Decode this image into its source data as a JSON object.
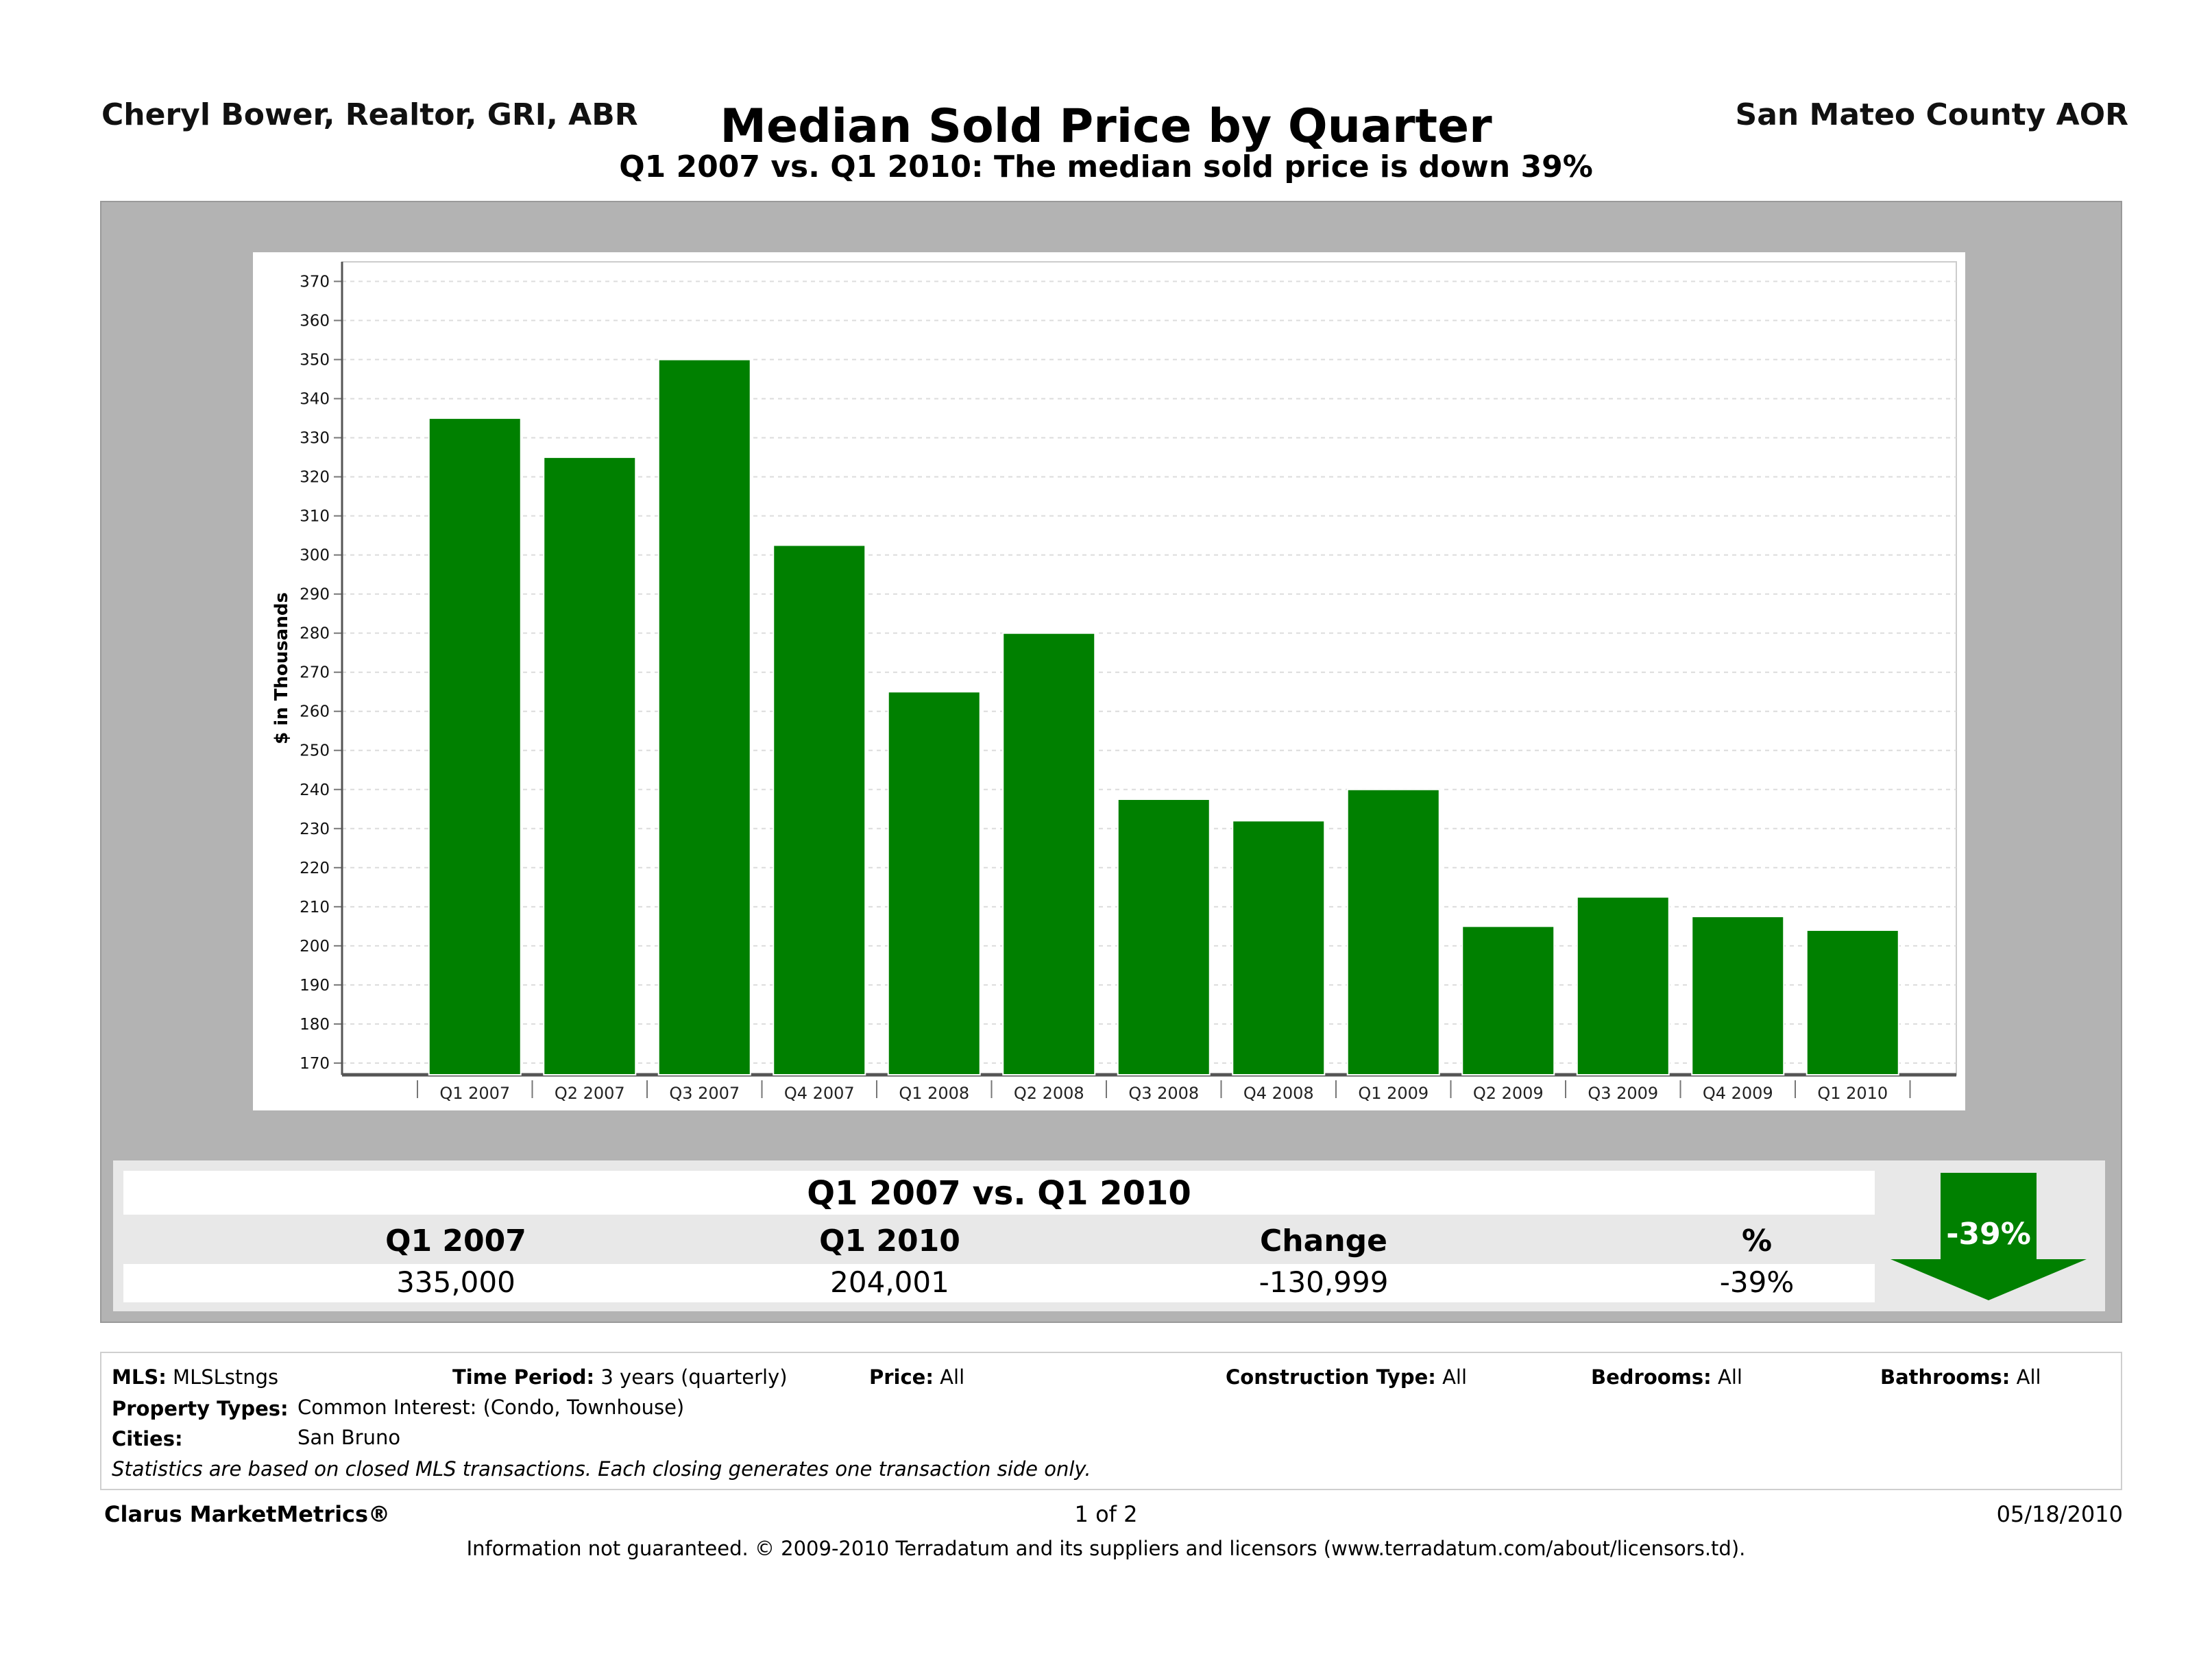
{
  "header": {
    "agent": "Cheryl Bower, Realtor, GRI, ABR",
    "association": "San Mateo County AOR",
    "title": "Median Sold Price by Quarter",
    "subtitle": "Q1 2007 vs. Q1 2010:  The median sold price is down 39%"
  },
  "chart_data": {
    "type": "bar",
    "title": "Median Sold Price by Quarter",
    "xlabel": "",
    "ylabel": "$ in Thousands",
    "categories": [
      "Q1 2007",
      "Q2 2007",
      "Q3 2007",
      "Q4 2007",
      "Q1 2008",
      "Q2 2008",
      "Q3 2008",
      "Q4 2008",
      "Q1 2009",
      "Q2 2009",
      "Q3 2009",
      "Q4 2009",
      "Q1 2010"
    ],
    "values": [
      335,
      325,
      350,
      302.5,
      265,
      280,
      237.5,
      232,
      240,
      205,
      212.5,
      207.5,
      204
    ],
    "ylim": [
      167,
      375
    ],
    "yticks": [
      170,
      180,
      190,
      200,
      210,
      220,
      230,
      240,
      250,
      260,
      270,
      280,
      290,
      300,
      310,
      320,
      330,
      340,
      350,
      360,
      370
    ],
    "grid": true,
    "bar_color": "#008000"
  },
  "summary": {
    "title": "Q1 2007 vs. Q1 2010",
    "headers": [
      "Q1 2007",
      "Q1 2010",
      "Change",
      "%"
    ],
    "values": [
      "335,000",
      "204,001",
      "-130,999",
      "-39%"
    ],
    "arrow_label": "-39%",
    "arrow_color": "#008000"
  },
  "criteria": {
    "mls_label": "MLS:",
    "mls_value": "MLSLstngs",
    "period_label": "Time Period:",
    "period_value": "3 years (quarterly)",
    "price_label": "Price:",
    "price_value": "All",
    "construction_label": "Construction Type:",
    "construction_value": "All",
    "bedrooms_label": "Bedrooms:",
    "bedrooms_value": "All",
    "bathrooms_label": "Bathrooms:",
    "bathrooms_value": "All",
    "property_label": "Property Types:",
    "property_value": "Common Interest: (Condo, Townhouse)",
    "cities_label": "Cities:",
    "cities_value": "San Bruno",
    "note": "Statistics are based on closed MLS transactions.  Each closing generates one transaction side only."
  },
  "footer": {
    "brand": "Clarus MarketMetrics®",
    "page": "1 of 2",
    "date": "05/18/2010",
    "disclaimer": "Information not guaranteed.  © 2009-2010 Terradatum and its suppliers and licensors (www.terradatum.com/about/licensors.td)."
  }
}
